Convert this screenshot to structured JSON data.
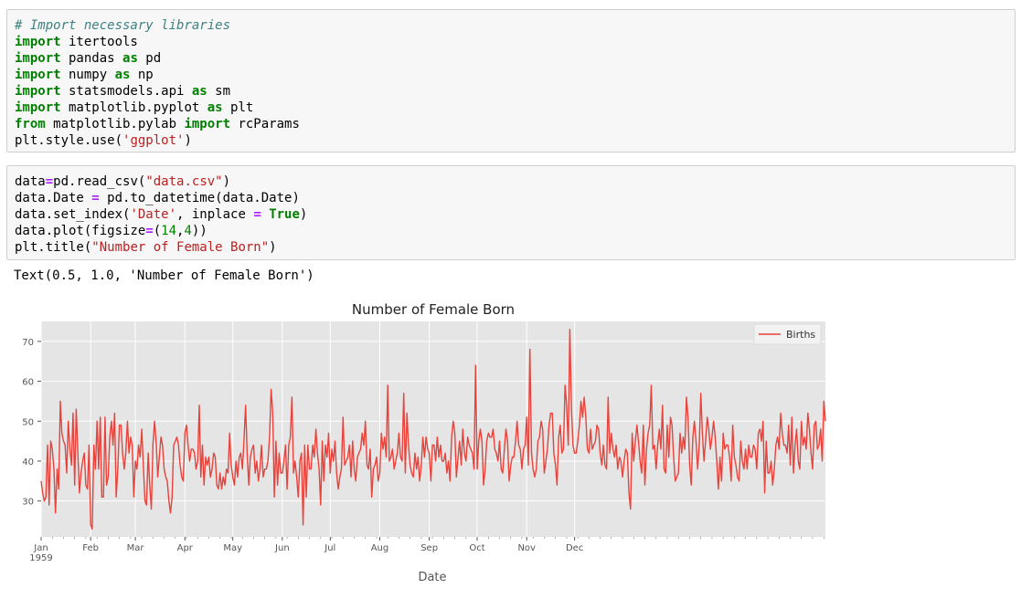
{
  "cells": [
    {
      "lines": [
        [
          {
            "t": "# Import necessary libraries",
            "c": "cm"
          }
        ],
        [
          {
            "t": "import",
            "c": "kw"
          },
          {
            "t": " itertools"
          }
        ],
        [
          {
            "t": "import",
            "c": "kw"
          },
          {
            "t": " pandas "
          },
          {
            "t": "as",
            "c": "kw"
          },
          {
            "t": " pd"
          }
        ],
        [
          {
            "t": "import",
            "c": "kw"
          },
          {
            "t": " numpy "
          },
          {
            "t": "as",
            "c": "kw"
          },
          {
            "t": " np"
          }
        ],
        [
          {
            "t": "import",
            "c": "kw"
          },
          {
            "t": " statsmodels.api "
          },
          {
            "t": "as",
            "c": "kw"
          },
          {
            "t": " sm"
          }
        ],
        [
          {
            "t": "import",
            "c": "kw"
          },
          {
            "t": " matplotlib.pyplot "
          },
          {
            "t": "as",
            "c": "kw"
          },
          {
            "t": " plt"
          }
        ],
        [
          {
            "t": "from",
            "c": "kw"
          },
          {
            "t": " matplotlib.pylab "
          },
          {
            "t": "import",
            "c": "kw"
          },
          {
            "t": " rcParams"
          }
        ],
        [
          {
            "t": "plt.style.use("
          },
          {
            "t": "'ggplot'",
            "c": "str"
          },
          {
            "t": ")"
          }
        ]
      ]
    },
    {
      "lines": [
        [
          {
            "t": "data"
          },
          {
            "t": "=",
            "c": "op"
          },
          {
            "t": "pd.read_csv("
          },
          {
            "t": "\"data.csv\"",
            "c": "str"
          },
          {
            "t": ")"
          }
        ],
        [
          {
            "t": "data.Date "
          },
          {
            "t": "=",
            "c": "op"
          },
          {
            "t": " pd.to_datetime(data.Date)"
          }
        ],
        [
          {
            "t": "data.set_index("
          },
          {
            "t": "'Date'",
            "c": "str"
          },
          {
            "t": ", inplace "
          },
          {
            "t": "=",
            "c": "op"
          },
          {
            "t": " "
          },
          {
            "t": "True",
            "c": "kw"
          },
          {
            "t": ")"
          }
        ],
        [
          {
            "t": "data.plot(figsize"
          },
          {
            "t": "=",
            "c": "op"
          },
          {
            "t": "("
          },
          {
            "t": "14",
            "c": "num"
          },
          {
            "t": ","
          },
          {
            "t": "4",
            "c": "num"
          },
          {
            "t": "))"
          }
        ],
        [
          {
            "t": "plt.title("
          },
          {
            "t": "\"Number of Female Born\"",
            "c": "str"
          },
          {
            "t": ")"
          }
        ]
      ]
    }
  ],
  "output": {
    "text": "Text(0.5, 1.0, 'Number of Female Born')"
  },
  "chart_data": {
    "type": "line",
    "title": "Number of Female Born",
    "xlabel": "Date",
    "ylabel": "",
    "ylim": [
      21,
      75
    ],
    "yticks": [
      30,
      40,
      50,
      60,
      70
    ],
    "xticks": [
      {
        "label": "Jan\n1959",
        "day": 0
      },
      {
        "label": "Feb",
        "day": 31
      },
      {
        "label": "Mar",
        "day": 59
      },
      {
        "label": "Apr",
        "day": 90
      },
      {
        "label": "May",
        "day": 120
      },
      {
        "label": "Jun",
        "day": 151
      },
      {
        "label": "Jul",
        "day": 181
      },
      {
        "label": "Aug",
        "day": 212
      },
      {
        "label": "Sep",
        "day": 243
      },
      {
        "label": "Oct",
        "day": 273
      },
      {
        "label": "Nov",
        "day": 304
      },
      {
        "label": "Dec",
        "day": 334
      }
    ],
    "grid": true,
    "legend": "top-right",
    "series": [
      {
        "name": "Births",
        "color": "#e8423b",
        "x_start": "1959-01-01",
        "values": [
          35,
          32,
          30,
          31,
          44,
          29,
          45,
          43,
          38,
          27,
          38,
          33,
          55,
          47,
          45,
          44,
          37,
          50,
          43,
          39,
          52,
          34,
          53,
          42,
          32,
          37,
          40,
          42,
          34,
          33,
          44,
          24,
          23,
          44,
          38,
          50,
          38,
          51,
          31,
          31,
          51,
          34,
          36,
          46,
          50,
          44,
          52,
          31,
          38,
          49,
          49,
          42,
          38,
          42,
          50,
          42,
          46,
          44,
          31,
          40,
          38,
          44,
          41,
          48,
          39,
          30,
          29,
          42,
          34,
          28,
          44,
          50,
          45,
          36,
          41,
          46,
          44,
          38,
          36,
          35,
          30,
          27,
          31,
          44,
          45,
          46,
          44,
          39,
          36,
          35,
          47,
          49,
          44,
          40,
          43,
          43,
          42,
          38,
          40,
          54,
          36,
          44,
          34,
          41,
          39,
          41,
          36,
          38,
          42,
          41,
          34,
          33,
          37,
          33,
          36,
          34,
          38,
          37,
          47,
          39,
          36,
          34,
          40,
          36,
          41,
          42,
          38,
          45,
          54,
          42,
          34,
          41,
          43,
          44,
          37,
          40,
          35,
          38,
          44,
          36,
          38,
          38,
          40,
          46,
          58,
          52,
          31,
          45,
          34,
          42,
          37,
          37,
          40,
          44,
          33,
          44,
          46,
          56,
          37,
          40,
          36,
          31,
          40,
          42,
          24,
          44,
          31,
          44,
          38,
          38,
          44,
          41,
          48,
          42,
          38,
          29,
          45,
          35,
          44,
          41,
          47,
          37,
          43,
          40,
          45,
          37,
          33,
          36,
          38,
          51,
          39,
          40,
          41,
          44,
          36,
          45,
          38,
          35,
          41,
          42,
          43,
          47,
          44,
          50,
          39,
          38,
          43,
          31,
          38,
          39,
          41,
          35,
          37,
          47,
          43,
          46,
          41,
          59,
          40,
          41,
          43,
          38,
          40,
          42,
          47,
          41,
          40,
          57,
          37,
          52,
          44,
          39,
          37,
          36,
          42,
          38,
          41,
          35,
          39,
          46,
          41,
          46,
          43,
          42,
          35,
          44,
          44,
          40,
          46,
          41,
          44,
          40,
          40,
          42,
          37,
          40,
          35,
          46,
          50,
          47,
          36,
          41,
          45,
          39,
          48,
          42,
          40,
          46,
          44,
          43,
          42,
          38,
          64,
          38,
          45,
          48,
          45,
          34,
          38,
          45,
          47,
          46,
          46,
          48,
          43,
          42,
          40,
          45,
          38,
          37,
          43,
          48,
          45,
          35,
          39,
          41,
          41,
          45,
          50,
          44,
          43,
          38,
          43,
          44,
          51,
          39,
          68,
          42,
          38,
          36,
          38,
          45,
          46,
          50,
          48,
          37,
          40,
          43,
          49,
          52,
          52,
          42,
          39,
          34,
          46,
          49,
          42,
          43,
          59,
          54,
          44,
          73,
          53,
          44,
          42,
          42,
          45,
          49,
          55,
          51,
          56,
          51,
          43,
          42,
          48,
          43,
          44,
          45,
          49,
          48,
          42,
          39,
          44,
          39,
          38,
          56,
          42,
          47,
          43,
          41,
          44,
          38,
          41,
          40,
          36,
          40,
          43,
          42,
          32,
          28,
          47,
          40,
          45,
          49,
          45,
          40,
          37,
          49,
          34,
          43,
          47,
          49,
          59,
          43,
          44,
          38,
          44,
          48,
          43,
          54,
          38,
          37,
          49,
          41,
          51,
          49,
          41,
          35,
          36,
          37,
          47,
          42,
          46,
          43,
          56,
          51,
          39,
          34,
          46,
          50,
          45,
          38,
          44,
          57,
          47,
          40,
          45,
          51,
          48,
          43,
          46,
          50,
          46,
          40,
          33,
          41,
          35,
          47,
          43,
          44,
          44,
          41,
          35,
          49,
          41,
          39,
          36,
          35,
          45,
          40,
          38,
          43,
          38,
          44,
          41,
          41,
          44,
          43,
          38,
          47,
          48,
          45,
          50,
          32,
          45,
          37,
          37,
          40,
          34,
          38,
          44,
          46,
          43,
          52,
          47,
          44,
          44,
          42,
          49,
          39,
          51,
          37,
          44,
          48,
          40,
          38,
          50,
          44,
          46,
          43,
          52,
          48,
          42,
          38,
          49,
          50,
          43,
          44,
          48,
          40,
          55,
          50
        ]
      }
    ]
  }
}
